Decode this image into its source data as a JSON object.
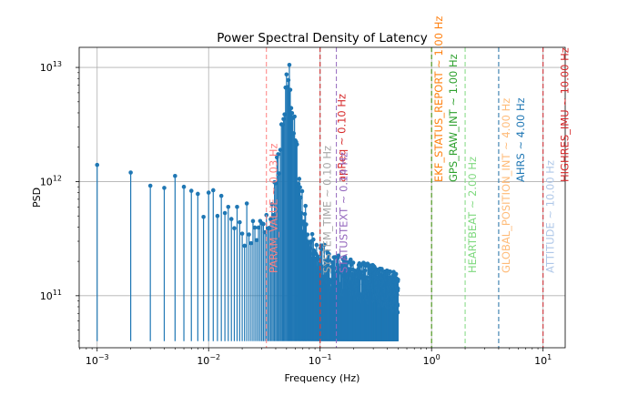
{
  "chart_data": {
    "type": "stem",
    "title": "Power Spectral Density of Latency",
    "xlabel": "Frequency (Hz)",
    "ylabel": "PSD",
    "xscale": "log",
    "yscale": "log",
    "xlim": [
      0.00069,
      15.8
    ],
    "ylim": [
      35000000000,
      15000000000000
    ],
    "grid": true,
    "x_ticks": [
      {
        "value": 0.001,
        "base": "10",
        "exp": "−3"
      },
      {
        "value": 0.01,
        "base": "10",
        "exp": "−2"
      },
      {
        "value": 0.1,
        "base": "10",
        "exp": "−1"
      },
      {
        "value": 1,
        "base": "10",
        "exp": "0"
      },
      {
        "value": 10,
        "base": "10",
        "exp": "1"
      }
    ],
    "y_ticks": [
      {
        "value": 100000000000,
        "base": "10",
        "exp": "11"
      },
      {
        "value": 1000000000000,
        "base": "10",
        "exp": "12"
      },
      {
        "value": 10000000000000,
        "base": "10",
        "exp": "13"
      }
    ],
    "stem_baseline": 40000000000,
    "stem_color": "#1f77b4",
    "series": [
      {
        "x_start": 0.001,
        "x_step": 0.001,
        "count": 500,
        "psd_samples": [
          [
            0.001,
            1400000000000.0
          ],
          [
            0.002,
            1200000000000.0
          ],
          [
            0.003,
            920000000000.0
          ],
          [
            0.004,
            880000000000.0
          ],
          [
            0.005,
            1120000000000.0
          ],
          [
            0.006,
            900000000000.0
          ],
          [
            0.007,
            830000000000.0
          ],
          [
            0.008,
            780000000000.0
          ],
          [
            0.009,
            490000000000.0
          ],
          [
            0.01,
            800000000000.0
          ],
          [
            0.011,
            840000000000.0
          ],
          [
            0.012,
            500000000000.0
          ],
          [
            0.013,
            750000000000.0
          ],
          [
            0.014,
            530000000000.0
          ],
          [
            0.015,
            600000000000.0
          ],
          [
            0.016,
            470000000000.0
          ],
          [
            0.017,
            390000000000.0
          ],
          [
            0.018,
            600000000000.0
          ],
          [
            0.019,
            440000000000.0
          ],
          [
            0.02,
            350000000000.0
          ],
          [
            0.022,
            440000000000.0
          ],
          [
            0.024,
            350000000000.0
          ],
          [
            0.026,
            370000000000.0
          ],
          [
            0.028,
            310000000000.0
          ],
          [
            0.03,
            400000000000.0
          ],
          [
            0.032,
            310000000000.0
          ],
          [
            0.034,
            460000000000.0
          ],
          [
            0.036,
            380000000000.0
          ],
          [
            0.038,
            700000000000.0
          ],
          [
            0.04,
            950000000000.0
          ],
          [
            0.042,
            1300000000000.0
          ],
          [
            0.044,
            1800000000000.0
          ],
          [
            0.046,
            2600000000000.0
          ],
          [
            0.048,
            3500000000000.0
          ],
          [
            0.05,
            6000000000000.0
          ],
          [
            0.052,
            8500000000000.0
          ],
          [
            0.054,
            7000000000000.0
          ],
          [
            0.056,
            4500000000000.0
          ],
          [
            0.058,
            3000000000000.0
          ],
          [
            0.06,
            2100000000000.0
          ],
          [
            0.062,
            1500000000000.0
          ],
          [
            0.064,
            1100000000000.0
          ],
          [
            0.066,
            850000000000.0
          ],
          [
            0.068,
            650000000000.0
          ],
          [
            0.07,
            500000000000.0
          ],
          [
            0.075,
            400000000000.0
          ],
          [
            0.08,
            300000000000.0
          ],
          [
            0.085,
            240000000000.0
          ],
          [
            0.09,
            200000000000.0
          ],
          [
            0.095,
            180000000000.0
          ],
          [
            0.1,
            200000000000.0
          ],
          [
            0.12,
            160000000000.0
          ],
          [
            0.14,
            150000000000.0
          ],
          [
            0.17,
            140000000000.0
          ],
          [
            0.2,
            130000000000.0
          ],
          [
            0.25,
            125000000000.0
          ],
          [
            0.3,
            120000000000.0
          ],
          [
            0.35,
            115000000000.0
          ],
          [
            0.4,
            110000000000.0
          ],
          [
            0.45,
            105000000000.0
          ],
          [
            0.5,
            100000000000.0
          ]
        ]
      }
    ],
    "annotations": [
      {
        "freq": 0.033,
        "label": "PARAM_VALUE ~ 0.03 Hz",
        "color": "#ff7f7f"
      },
      {
        "freq": 0.1,
        "label": "SYSTEM_TIME ~ 0.10 Hz",
        "color": "#a6a6a6"
      },
      {
        "freq": 0.1,
        "label": "apReq ~ 0.10 Hz",
        "color": "#d62728"
      },
      {
        "freq": 0.14,
        "label": "STATUSTEXT ~ 0.14 Hz",
        "color": "#9467bd"
      },
      {
        "freq": 1.0,
        "label": "EKF_STATUS_REPORT ~ 1.00 Hz",
        "color": "#ff7f0e"
      },
      {
        "freq": 1.0,
        "label": "GPS_RAW_INT ~ 1.00 Hz",
        "color": "#2ca02c"
      },
      {
        "freq": 2.0,
        "label": "HEARTBEAT ~ 2.00 Hz",
        "color": "#7fd97f"
      },
      {
        "freq": 4.0,
        "label": "GLOBAL_POSITION_INT ~ 4.00 Hz",
        "color": "#ffbb78"
      },
      {
        "freq": 4.0,
        "label": "AHRS ~ 4.00 Hz",
        "color": "#1f77b4"
      },
      {
        "freq": 10.0,
        "label": "ATTITUDE ~ 10.00 Hz",
        "color": "#aec7e8"
      },
      {
        "freq": 10.0,
        "label": "HIGHRES_IMU ~ 10.00 Hz",
        "color": "#d62728"
      }
    ]
  }
}
